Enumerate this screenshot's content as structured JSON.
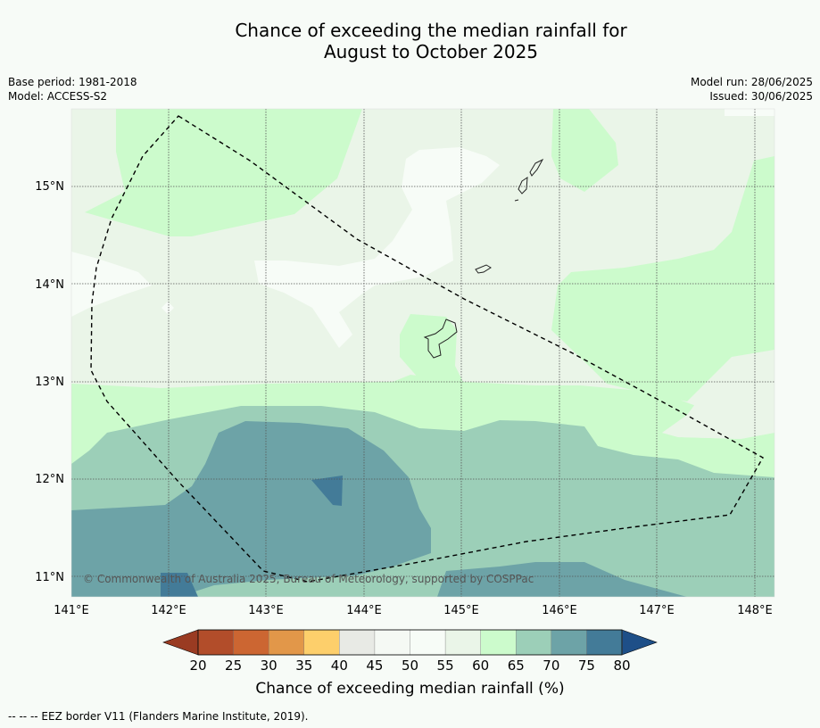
{
  "title_line1": "Chance of exceeding the median rainfall for",
  "title_line2": "August to October 2025",
  "base_period": "Base period: 1981-2018",
  "model": "Model: ACCESS-S2",
  "model_run": "Model run: 28/06/2025",
  "issued": "Issued: 30/06/2025",
  "copyright": "© Commonwealth of Australia 2025, Bureau of Meteorology, supported by COSPPac",
  "footer_note": "--  --  -- EEZ border V11 (Flanders Marine Institute, 2019).",
  "map": {
    "lon_ticks": [
      "141°E",
      "142°E",
      "143°E",
      "144°E",
      "145°E",
      "146°E",
      "147°E",
      "148°E"
    ],
    "lat_ticks": [
      "15°N",
      "14°N",
      "13°N",
      "12°N",
      "11°N"
    ],
    "gridlines": true
  },
  "colorbar": {
    "title": "Chance of exceeding median rainfall (%)",
    "ticks": [
      "20",
      "25",
      "30",
      "35",
      "40",
      "45",
      "50",
      "55",
      "60",
      "65",
      "70",
      "75",
      "80"
    ],
    "under_color": "#9a3b22",
    "over_color": "#1e4f88",
    "colors": [
      "#b24d2a",
      "#cc6632",
      "#e29749",
      "#fdcf6b",
      "#e8eae5",
      "#f5f9f4",
      "#f7fcf7",
      "#eaf5e8",
      "#ccfbcc",
      "#9ccfb8",
      "#6da3a7",
      "#437b98"
    ]
  }
}
